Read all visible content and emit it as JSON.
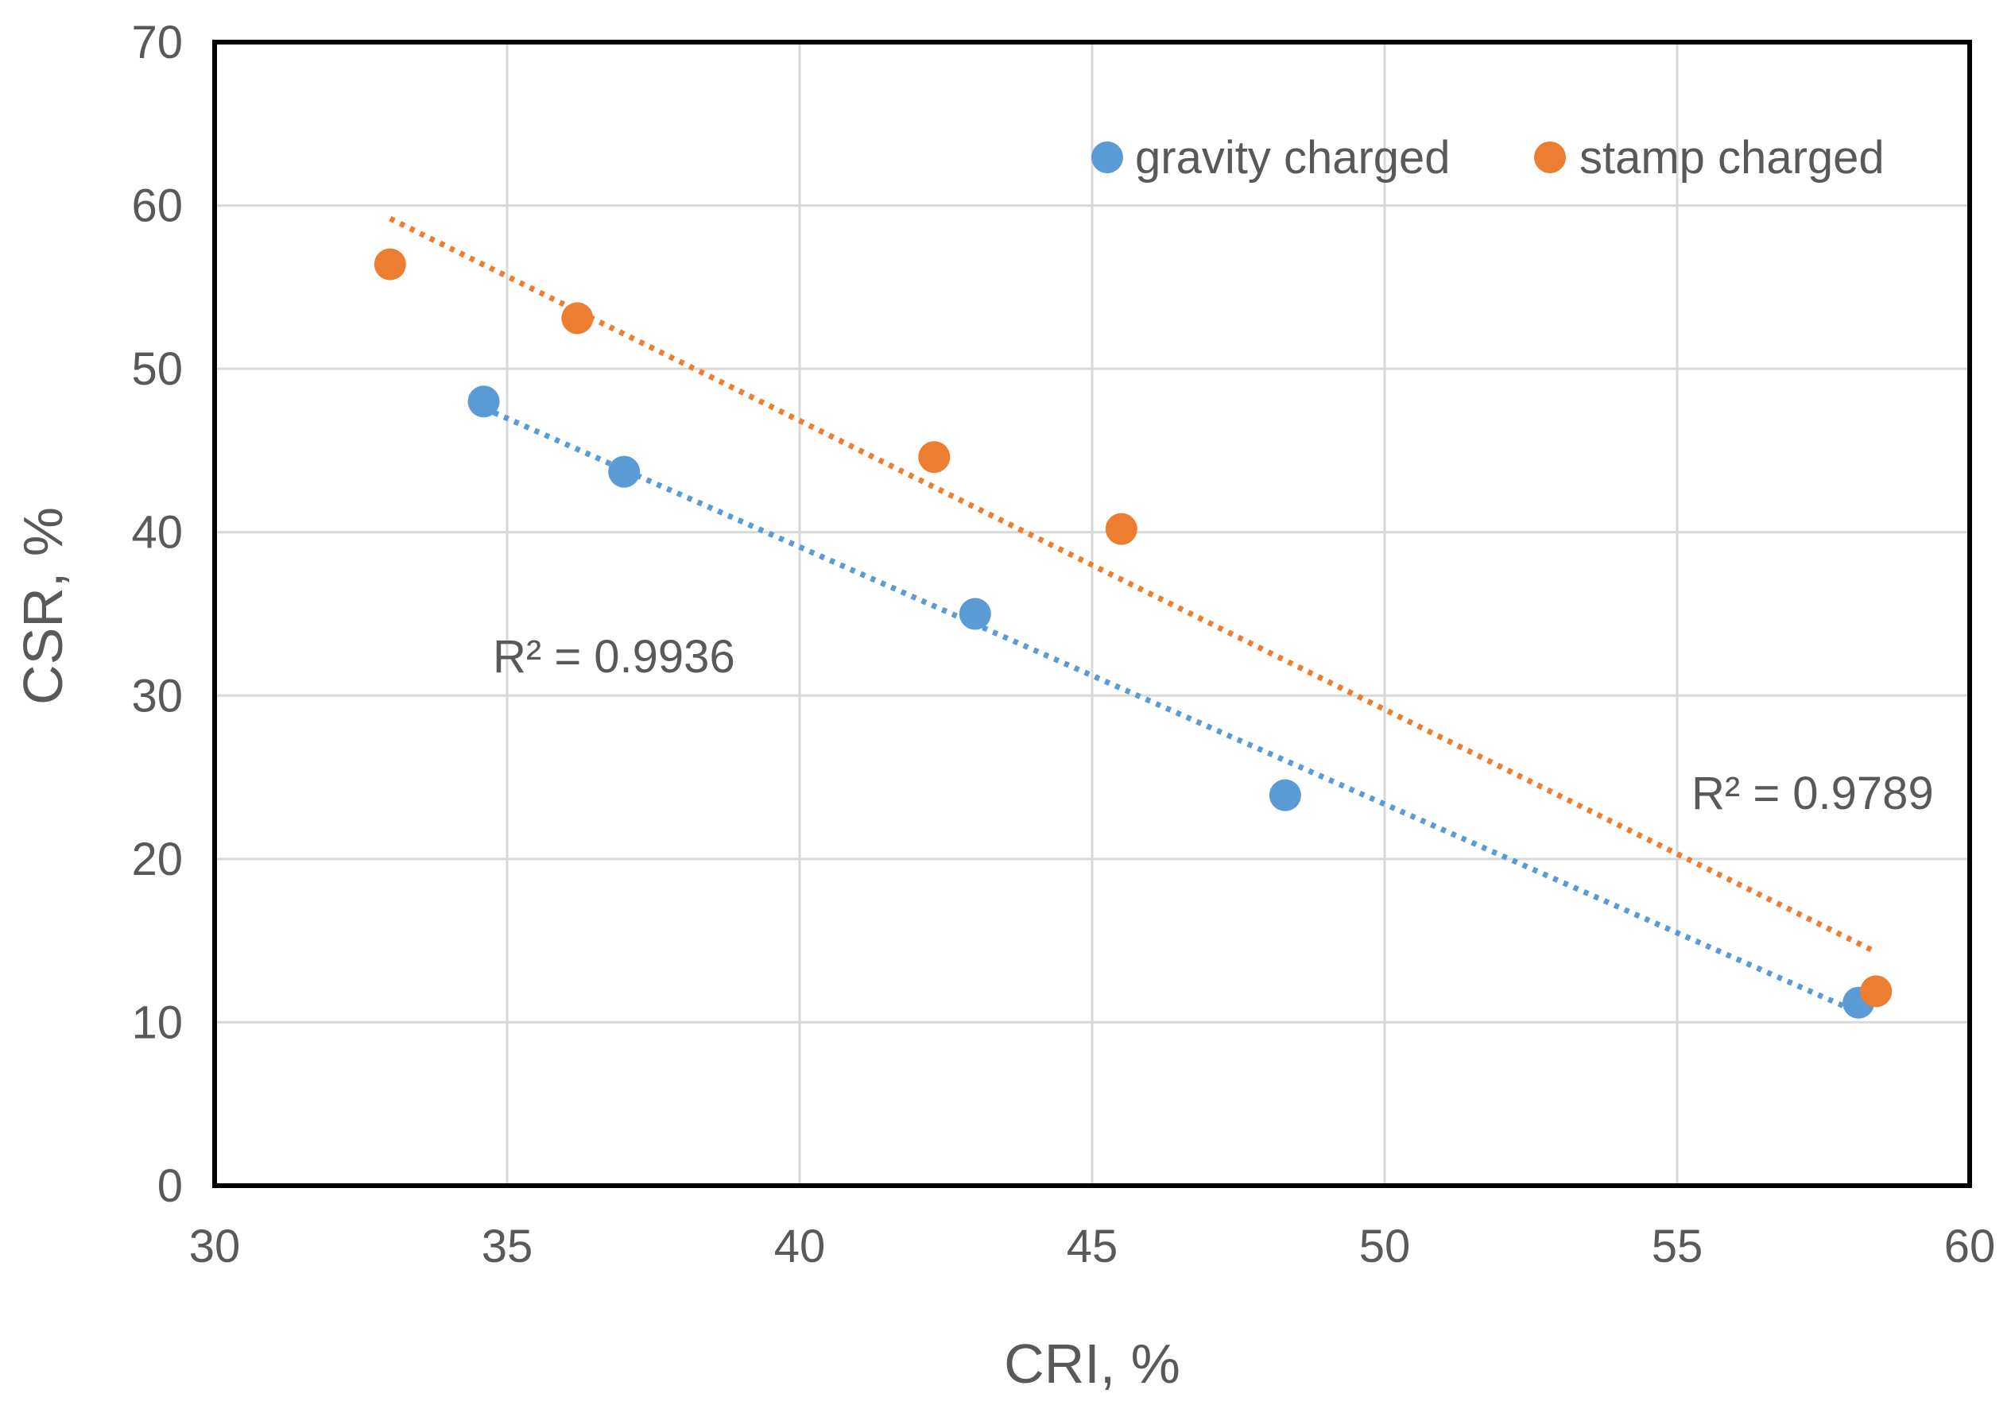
{
  "chart_data": {
    "type": "scatter",
    "title": "",
    "xlabel": "CRI, %",
    "ylabel": "CSR, %",
    "xlim": [
      30,
      60
    ],
    "ylim": [
      0,
      70
    ],
    "xticks": [
      30,
      35,
      40,
      45,
      50,
      55,
      60
    ],
    "yticks": [
      0,
      10,
      20,
      30,
      40,
      50,
      60,
      70
    ],
    "grid": true,
    "legend_position": "top-right",
    "series": [
      {
        "name": "gravity charged",
        "color": "#5B9BD5",
        "x": [
          34.6,
          37.0,
          43.0,
          48.3,
          58.1
        ],
        "y": [
          48.0,
          43.7,
          35.0,
          23.9,
          11.2
        ],
        "trendline": {
          "type": "linear",
          "x_range": [
            34.6,
            58.1
          ],
          "y_range": [
            47.6,
            10.6
          ],
          "r2_label": "R² = 0.9936"
        }
      },
      {
        "name": "stamp charged",
        "color": "#ED7D31",
        "x": [
          33.0,
          36.2,
          42.3,
          45.5,
          58.4
        ],
        "y": [
          56.4,
          53.1,
          44.6,
          40.2,
          11.9
        ],
        "trendline": {
          "type": "linear",
          "x_range": [
            33.0,
            58.4
          ],
          "y_range": [
            59.2,
            14.3
          ],
          "r2_label": "R² = 0.9789"
        }
      }
    ]
  }
}
